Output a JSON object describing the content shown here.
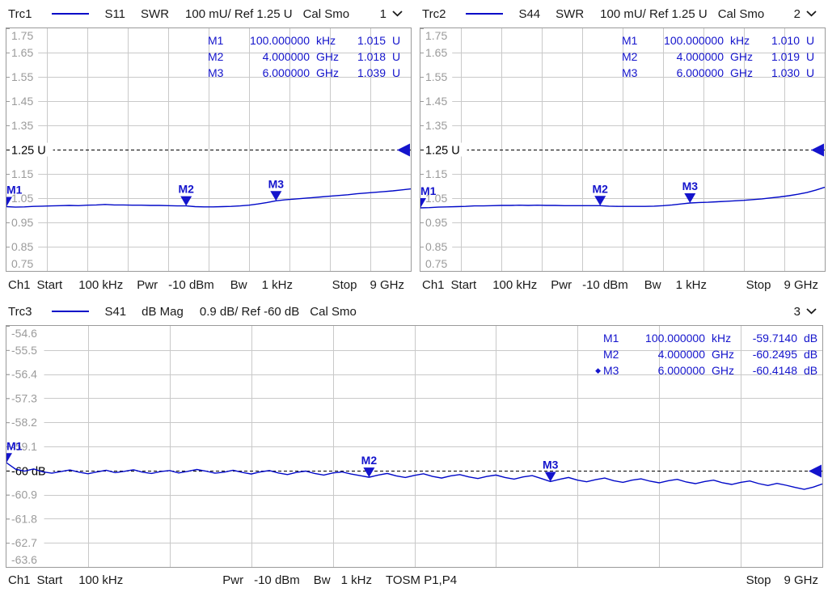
{
  "colors": {
    "trace": "#0008C8",
    "marker": "#1414CC",
    "grid": "#C9C9C9",
    "axis_text": "#9B9B9B",
    "ref_line": "#000000",
    "text": "#1A1A1A",
    "border": "#9A9A9A"
  },
  "panels": [
    {
      "header": {
        "trace": "Trc1",
        "parameter": "S11",
        "format": "SWR",
        "scale": "100 mU/ Ref 1.25 U",
        "cal": "Cal Smo",
        "window": "1"
      },
      "markers": [
        {
          "active": false,
          "name": "M1",
          "stim": "100.000000",
          "stim_unit": "kHz",
          "resp": "1.015",
          "resp_unit": "U"
        },
        {
          "active": false,
          "name": "M2",
          "stim": "4.000000",
          "stim_unit": "GHz",
          "resp": "1.018",
          "resp_unit": "U"
        },
        {
          "active": false,
          "name": "M3",
          "stim": "6.000000",
          "stim_unit": "GHz",
          "resp": "1.039",
          "resp_unit": "U"
        }
      ],
      "footer": {
        "ch": "Ch1",
        "start_label": "Start",
        "start": "100 kHz",
        "pwr_label": "Pwr",
        "pwr": "-10 dBm",
        "bw_label": "Bw",
        "bw": "1 kHz",
        "stop_label": "Stop",
        "stop": "9 GHz"
      }
    },
    {
      "header": {
        "trace": "Trc2",
        "parameter": "S44",
        "format": "SWR",
        "scale": "100 mU/ Ref 1.25 U",
        "cal": "Cal Smo",
        "window": "2"
      },
      "markers": [
        {
          "active": false,
          "name": "M1",
          "stim": "100.000000",
          "stim_unit": "kHz",
          "resp": "1.010",
          "resp_unit": "U"
        },
        {
          "active": false,
          "name": "M2",
          "stim": "4.000000",
          "stim_unit": "GHz",
          "resp": "1.019",
          "resp_unit": "U"
        },
        {
          "active": false,
          "name": "M3",
          "stim": "6.000000",
          "stim_unit": "GHz",
          "resp": "1.030",
          "resp_unit": "U"
        }
      ],
      "footer": {
        "ch": "Ch1",
        "start_label": "Start",
        "start": "100 kHz",
        "pwr_label": "Pwr",
        "pwr": "-10 dBm",
        "bw_label": "Bw",
        "bw": "1 kHz",
        "stop_label": "Stop",
        "stop": "9 GHz"
      }
    },
    {
      "header": {
        "trace": "Trc3",
        "parameter": "S41",
        "format": "dB Mag",
        "scale": "0.9 dB/ Ref -60 dB",
        "cal": "Cal Smo",
        "window": "3"
      },
      "markers": [
        {
          "active": false,
          "name": "M1",
          "stim": "100.000000",
          "stim_unit": "kHz",
          "resp": "-59.7140",
          "resp_unit": "dB"
        },
        {
          "active": false,
          "name": "M2",
          "stim": "4.000000",
          "stim_unit": "GHz",
          "resp": "-60.2495",
          "resp_unit": "dB"
        },
        {
          "active": true,
          "name": "M3",
          "stim": "6.000000",
          "stim_unit": "GHz",
          "resp": "-60.4148",
          "resp_unit": "dB"
        }
      ],
      "footer": {
        "ch": "Ch1",
        "start_label": "Start",
        "start": "100 kHz",
        "pwr_label": "Pwr",
        "pwr": "-10 dBm",
        "bw_label": "Bw",
        "bw": "1 kHz",
        "cal_standard": "TOSM P1,P4",
        "stop_label": "Stop",
        "stop": "9 GHz"
      }
    }
  ],
  "chart_data": [
    {
      "type": "line",
      "title": "Trc1 S11 SWR",
      "x_unit": "GHz",
      "x_range": [
        0,
        9
      ],
      "y_range": [
        0.75,
        1.75
      ],
      "y_ticks": [
        "1.75",
        "1.65",
        "1.55",
        "1.45",
        "1.35",
        "1.25 U",
        "1.15",
        "1.05",
        "0.95",
        "0.85",
        "0.75"
      ],
      "ref_index": 5,
      "ref_value": 1.25,
      "ref_label": "1.25 U",
      "grid_cols": 10,
      "legend": "Trc1",
      "series": {
        "x0": 0,
        "dx": 0.2,
        "values": [
          1.015,
          1.013,
          1.014,
          1.016,
          1.017,
          1.018,
          1.019,
          1.02,
          1.019,
          1.021,
          1.022,
          1.024,
          1.022,
          1.022,
          1.021,
          1.021,
          1.02,
          1.02,
          1.019,
          1.018,
          1.018,
          1.015,
          1.014,
          1.014,
          1.015,
          1.016,
          1.018,
          1.021,
          1.026,
          1.032,
          1.039,
          1.043,
          1.046,
          1.049,
          1.052,
          1.055,
          1.058,
          1.061,
          1.064,
          1.068,
          1.071,
          1.074,
          1.077,
          1.08,
          1.084,
          1.088
        ]
      },
      "markers": [
        {
          "name": "M1",
          "x": 0.0001,
          "y": 1.015
        },
        {
          "name": "M2",
          "x": 4,
          "y": 1.018
        },
        {
          "name": "M3",
          "x": 6,
          "y": 1.039
        }
      ]
    },
    {
      "type": "line",
      "title": "Trc2 S44 SWR",
      "x_unit": "GHz",
      "x_range": [
        0,
        9
      ],
      "y_range": [
        0.75,
        1.75
      ],
      "y_ticks": [
        "1.75",
        "1.65",
        "1.55",
        "1.45",
        "1.35",
        "1.25 U",
        "1.15",
        "1.05",
        "0.95",
        "0.85",
        "0.75"
      ],
      "ref_index": 5,
      "ref_value": 1.25,
      "ref_label": "1.25 U",
      "grid_cols": 10,
      "legend": "Trc2",
      "series": {
        "x0": 0,
        "dx": 0.2,
        "values": [
          1.01,
          1.011,
          1.013,
          1.014,
          1.015,
          1.016,
          1.018,
          1.018,
          1.019,
          1.02,
          1.02,
          1.021,
          1.02,
          1.021,
          1.02,
          1.02,
          1.019,
          1.019,
          1.019,
          1.019,
          1.019,
          1.017,
          1.016,
          1.016,
          1.016,
          1.016,
          1.017,
          1.019,
          1.022,
          1.026,
          1.03,
          1.032,
          1.033,
          1.035,
          1.037,
          1.039,
          1.041,
          1.044,
          1.047,
          1.051,
          1.055,
          1.06,
          1.066,
          1.073,
          1.083,
          1.095
        ]
      },
      "markers": [
        {
          "name": "M1",
          "x": 0.0001,
          "y": 1.01
        },
        {
          "name": "M2",
          "x": 4,
          "y": 1.019
        },
        {
          "name": "M3",
          "x": 6,
          "y": 1.03
        }
      ]
    },
    {
      "type": "line",
      "title": "Trc3 S41 dB Mag",
      "x_unit": "GHz",
      "x_range": [
        0,
        9
      ],
      "y_range": [
        -63.6,
        -54.6
      ],
      "y_ticks": [
        "-54.6",
        "-55.5",
        "-56.4",
        "-57.3",
        "-58.2",
        "-59.1",
        "-60 dB",
        "-60.9",
        "-61.8",
        "-62.7",
        "-63.6"
      ],
      "ref_index": 6,
      "ref_value": -60,
      "ref_label": "-60 dB",
      "grid_cols": 10,
      "legend": "Trc3",
      "series": {
        "x0": 0,
        "dx": 0.1,
        "values": [
          -59.71,
          -59.95,
          -60.02,
          -59.94,
          -60.05,
          -60.1,
          -60.04,
          -59.98,
          -60.06,
          -60.12,
          -60.05,
          -59.99,
          -60.08,
          -60.03,
          -59.97,
          -60.06,
          -60.11,
          -60.04,
          -60.0,
          -60.09,
          -60.03,
          -59.96,
          -60.02,
          -60.1,
          -60.06,
          -59.99,
          -60.07,
          -60.13,
          -60.05,
          -60.0,
          -60.09,
          -60.15,
          -60.07,
          -60.02,
          -60.11,
          -60.17,
          -60.09,
          -60.05,
          -60.13,
          -60.19,
          -60.25,
          -60.17,
          -60.11,
          -60.2,
          -60.26,
          -60.18,
          -60.12,
          -60.22,
          -60.28,
          -60.2,
          -60.15,
          -60.24,
          -60.3,
          -60.22,
          -60.17,
          -60.26,
          -60.32,
          -60.24,
          -60.19,
          -60.3,
          -60.41,
          -60.33,
          -60.26,
          -60.36,
          -60.42,
          -60.34,
          -60.28,
          -60.38,
          -60.44,
          -60.36,
          -60.31,
          -60.4,
          -60.46,
          -60.38,
          -60.33,
          -60.43,
          -60.49,
          -60.41,
          -60.36,
          -60.46,
          -60.52,
          -60.44,
          -60.39,
          -60.49,
          -60.56,
          -60.48,
          -60.55,
          -60.63,
          -60.7,
          -60.62,
          -60.5
        ]
      },
      "markers": [
        {
          "name": "M1",
          "x": 0.0001,
          "y": -59.714
        },
        {
          "name": "M2",
          "x": 4,
          "y": -60.2495
        },
        {
          "name": "M3",
          "x": 6,
          "y": -60.4148
        }
      ]
    }
  ]
}
